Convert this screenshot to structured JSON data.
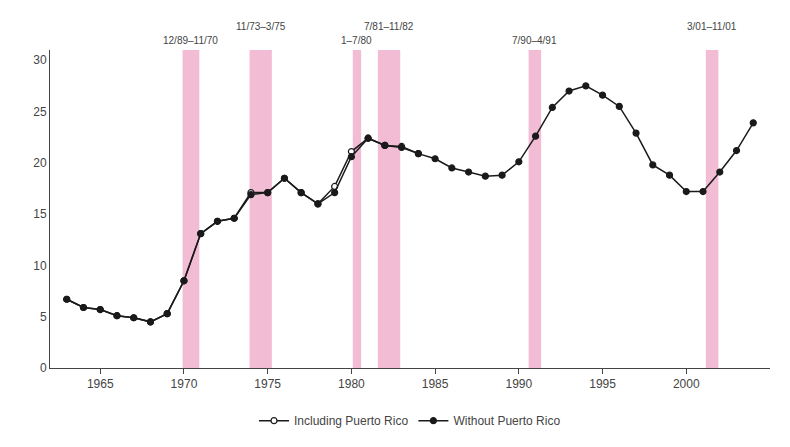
{
  "chart_data": {
    "type": "line",
    "xlim": [
      1962,
      2005
    ],
    "ylim": [
      0,
      31
    ],
    "xticks": [
      1965,
      1970,
      1975,
      1980,
      1985,
      1990,
      1995,
      2000
    ],
    "yticks": [
      0,
      5,
      10,
      15,
      20,
      25,
      30
    ],
    "grid": false,
    "legend": "bottom",
    "bands": [
      {
        "start": 1969.917,
        "end": 1970.917,
        "label": "12/89–11/70",
        "color": "#f2bdd4"
      },
      {
        "start": 1973.917,
        "end": 1975.25,
        "label": "11/73–3/75",
        "color": "#f2bdd4"
      },
      {
        "start": 1980.083,
        "end": 1980.583,
        "label": "1–7/80",
        "color": "#f2bdd4"
      },
      {
        "start": 1981.583,
        "end": 1982.917,
        "label": "7/81–11/82",
        "color": "#f2bdd4"
      },
      {
        "start": 1990.583,
        "end": 1991.333,
        "label": "7/90–4/91",
        "color": "#f2bdd4"
      },
      {
        "start": 2001.167,
        "end": 2001.917,
        "label": "3/01–11/01",
        "color": "#f2bdd4"
      }
    ],
    "series": [
      {
        "name": "Including Puerto Rico",
        "color": "#1a1a1a",
        "marker": "circle-open",
        "x": [
          1963,
          1964,
          1965,
          1966,
          1967,
          1968,
          1969,
          1970,
          1971,
          1972,
          1973,
          1974,
          1975,
          1976,
          1977,
          1978,
          1979,
          1980,
          1981,
          1982,
          1983,
          1984
        ],
        "values": [
          6.7,
          5.9,
          5.7,
          5.1,
          4.9,
          4.5,
          5.3,
          8.5,
          13.1,
          14.3,
          14.6,
          17.1,
          17.1,
          18.5,
          17.1,
          16.0,
          17.7,
          21.1,
          22.4,
          21.7,
          21.6,
          20.9
        ]
      },
      {
        "name": "Without Puerto Rico",
        "color": "#1a1a1a",
        "marker": "circle",
        "x": [
          1963,
          1964,
          1965,
          1966,
          1967,
          1968,
          1969,
          1970,
          1971,
          1972,
          1973,
          1974,
          1975,
          1976,
          1977,
          1978,
          1979,
          1980,
          1981,
          1982,
          1983,
          1984,
          1985,
          1986,
          1987,
          1988,
          1989,
          1990,
          1991,
          1992,
          1993,
          1994,
          1995,
          1996,
          1997,
          1998,
          1999,
          2000,
          2001,
          2002,
          2003,
          2004
        ],
        "values": [
          6.7,
          5.9,
          5.7,
          5.1,
          4.9,
          4.5,
          5.3,
          8.5,
          13.1,
          14.3,
          14.6,
          16.9,
          17.1,
          18.5,
          17.1,
          16.0,
          17.1,
          20.6,
          22.4,
          21.7,
          21.5,
          20.9,
          20.4,
          19.5,
          19.1,
          18.7,
          18.8,
          20.1,
          22.6,
          25.4,
          27.0,
          27.5,
          26.6,
          25.5,
          22.9,
          19.8,
          18.8,
          17.2,
          17.2,
          19.1,
          21.2,
          23.9
        ]
      }
    ]
  }
}
